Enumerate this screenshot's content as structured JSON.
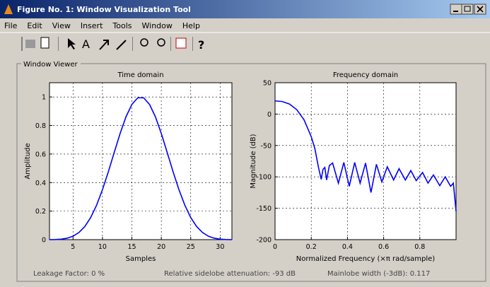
{
  "window": {
    "title": "Figure No. 1: Window Visualization Tool"
  },
  "menu": [
    "File",
    "Edit",
    "View",
    "Insert",
    "Tools",
    "Window",
    "Help"
  ],
  "panel": {
    "title": "Window Viewer"
  },
  "chart_data": [
    {
      "type": "line",
      "title": "Time domain",
      "x_label": "Samples",
      "y_label": "Amplitude",
      "x": [
        1,
        2,
        3,
        4,
        5,
        6,
        7,
        8,
        9,
        10,
        11,
        12,
        13,
        14,
        15,
        16,
        17,
        18,
        19,
        20,
        21,
        22,
        23,
        24,
        25,
        26,
        27,
        28,
        29,
        30,
        31,
        32
      ],
      "series": [
        {
          "color": "#0000ff",
          "values": [
            0,
            0.0007,
            0.0033,
            0.0101,
            0.0241,
            0.0499,
            0.0918,
            0.1551,
            0.2411,
            0.3497,
            0.4759,
            0.6115,
            0.7437,
            0.861,
            0.9478,
            0.9941,
            0.9941,
            0.9478,
            0.861,
            0.7437,
            0.6115,
            0.4759,
            0.3497,
            0.2411,
            0.1551,
            0.0918,
            0.0499,
            0.0241,
            0.0101,
            0.0033,
            0.0007,
            0
          ]
        }
      ],
      "xlim": [
        1,
        32
      ],
      "xticks": [
        5,
        10,
        15,
        20,
        25,
        30
      ],
      "ylim": [
        0,
        1.1
      ],
      "yticks": [
        0,
        0.2,
        0.4,
        0.6,
        0.8,
        1
      ],
      "grid": true
    },
    {
      "type": "line",
      "title": "Frequency domain",
      "x_label": "Normalized Frequency (×π rad/sample)",
      "y_label": "Magnitude (dB)",
      "x": [
        0,
        0.04,
        0.08,
        0.12,
        0.16,
        0.2,
        0.22,
        0.24,
        0.255,
        0.265,
        0.275,
        0.285,
        0.3,
        0.318,
        0.35,
        0.38,
        0.41,
        0.44,
        0.47,
        0.5,
        0.53,
        0.56,
        0.59,
        0.62,
        0.655,
        0.685,
        0.72,
        0.75,
        0.78,
        0.815,
        0.845,
        0.875,
        0.91,
        0.94,
        0.97,
        0.985,
        1
      ],
      "series": [
        {
          "color": "#0000ff",
          "values": [
            21,
            20,
            16,
            7,
            -9,
            -36,
            -55,
            -85,
            -104,
            -88,
            -85,
            -105,
            -82,
            -78,
            -110,
            -77,
            -115,
            -77,
            -110,
            -78,
            -125,
            -80,
            -108,
            -84,
            -105,
            -87,
            -105,
            -90,
            -106,
            -93,
            -110,
            -97,
            -114,
            -100,
            -115,
            -110,
            -155
          ]
        }
      ],
      "xlim": [
        0,
        1
      ],
      "xticks": [
        0,
        0.2,
        0.4,
        0.6,
        0.8
      ],
      "ylim": [
        -200,
        50
      ],
      "yticks": [
        -200,
        -150,
        -100,
        -50,
        0,
        50
      ],
      "grid": true
    }
  ],
  "status": {
    "leakage": "Leakage Factor: 0 %",
    "attenuation": "Relative sidelobe attenuation: -93 dB",
    "mainlobe": "Mainlobe width (-3dB): 0.117"
  }
}
